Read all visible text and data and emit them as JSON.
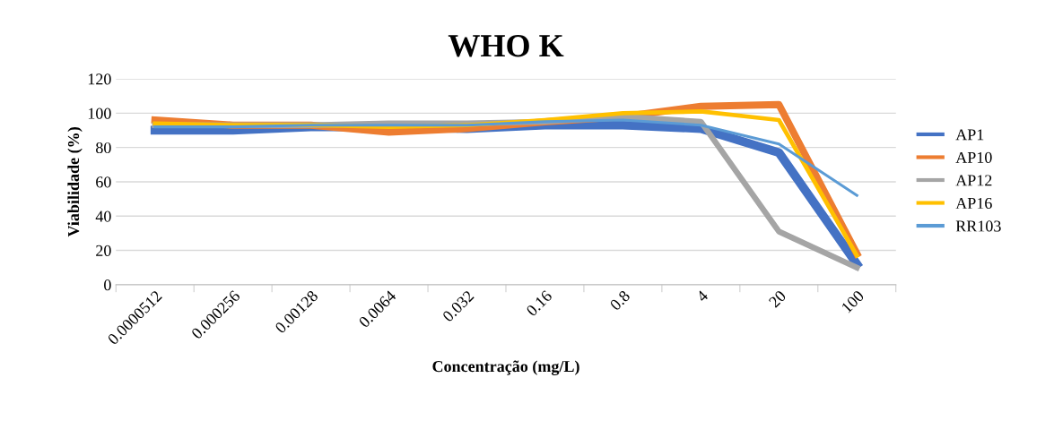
{
  "chart_data": {
    "type": "line",
    "title": "WHO K",
    "xlabel": "Concentração (mg/L)",
    "ylabel": "Viabilidade (%)",
    "categories": [
      "0.0000512",
      "0.000256",
      "0.00128",
      "0.0064",
      "0.032",
      "0.16",
      "0.8",
      "4",
      "20",
      "100"
    ],
    "series": [
      {
        "name": "AP1",
        "color": "#4472c4",
        "values": [
          90,
          90,
          92,
          92,
          91,
          93,
          93,
          91,
          77,
          12
        ]
      },
      {
        "name": "AP10",
        "color": "#ed7d31",
        "values": [
          96,
          93,
          93,
          89,
          91,
          95,
          98,
          104,
          105,
          18
        ]
      },
      {
        "name": "AP12",
        "color": "#a5a5a5",
        "values": [
          93,
          93,
          93,
          94,
          94,
          95,
          98,
          95,
          31,
          10
        ]
      },
      {
        "name": "AP16",
        "color": "#ffc000",
        "values": [
          94,
          93,
          93,
          92,
          93,
          96,
          100,
          101,
          96,
          17
        ]
      },
      {
        "name": "RR103",
        "color": "#5b9bd5",
        "values": [
          92,
          92,
          93,
          93,
          93,
          95,
          96,
          93,
          82,
          52
        ]
      }
    ],
    "ylim": [
      0,
      120
    ],
    "yticks": [
      0,
      20,
      40,
      60,
      80,
      100,
      120
    ],
    "grid": "y",
    "legend": "right",
    "marker": "none",
    "line_style": "solid"
  }
}
